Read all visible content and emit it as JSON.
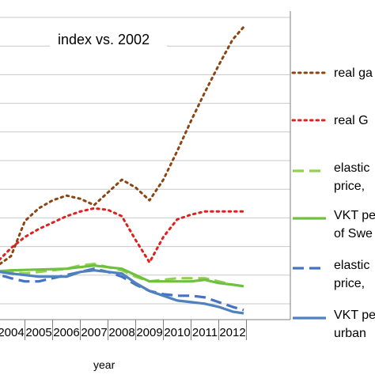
{
  "chart_data": {
    "type": "line",
    "title": "index vs. 2002",
    "xlabel": "year",
    "ylabel": "",
    "x": [
      "2004",
      "2005",
      "2006",
      "2007",
      "2008",
      "2009",
      "2010",
      "2011",
      "2012"
    ],
    "grid": true,
    "legend_placement": "right",
    "series": [
      {
        "name": "real ga",
        "color": "#8B4513",
        "style": "dotted",
        "points": [
          [
            2003.1,
            128
          ],
          [
            2003.6,
            135
          ],
          [
            2004.0,
            140
          ],
          [
            2004.5,
            162
          ],
          [
            2005.0,
            170
          ],
          [
            2005.5,
            175
          ],
          [
            2006.0,
            178
          ],
          [
            2006.5,
            176
          ],
          [
            2007.0,
            172
          ],
          [
            2007.5,
            180
          ],
          [
            2008.0,
            188
          ],
          [
            2008.5,
            183
          ],
          [
            2009.0,
            175
          ],
          [
            2009.5,
            188
          ],
          [
            2010.0,
            206
          ],
          [
            2010.5,
            225
          ],
          [
            2011.0,
            243
          ],
          [
            2011.5,
            260
          ],
          [
            2012.0,
            276
          ],
          [
            2012.4,
            284
          ]
        ]
      },
      {
        "name": "real G",
        "color": "#E02020",
        "style": "dotted",
        "points": [
          [
            2003.1,
            130
          ],
          [
            2003.6,
            138
          ],
          [
            2004.0,
            145
          ],
          [
            2004.5,
            152
          ],
          [
            2005.0,
            157
          ],
          [
            2005.5,
            161
          ],
          [
            2006.0,
            165
          ],
          [
            2006.5,
            168
          ],
          [
            2007.0,
            170
          ],
          [
            2007.5,
            169
          ],
          [
            2008.0,
            165
          ],
          [
            2008.5,
            150
          ],
          [
            2009.0,
            136
          ],
          [
            2009.5,
            152
          ],
          [
            2010.0,
            163
          ],
          [
            2010.5,
            166
          ],
          [
            2011.0,
            168
          ],
          [
            2011.5,
            168
          ],
          [
            2012.0,
            168
          ],
          [
            2012.4,
            168
          ]
        ]
      },
      {
        "name": "elastic price,",
        "color": "#92D050",
        "style": "dashed",
        "points": [
          [
            2003.1,
            129
          ],
          [
            2003.6,
            130
          ],
          [
            2004.0,
            130
          ],
          [
            2004.5,
            129
          ],
          [
            2005.0,
            130
          ],
          [
            2005.5,
            131
          ],
          [
            2006.0,
            132
          ],
          [
            2006.5,
            134
          ],
          [
            2007.0,
            135
          ],
          [
            2007.5,
            133
          ],
          [
            2008.0,
            131
          ],
          [
            2008.5,
            127
          ],
          [
            2009.0,
            124
          ],
          [
            2009.5,
            125
          ],
          [
            2010.0,
            126
          ],
          [
            2010.5,
            126
          ],
          [
            2011.0,
            126
          ],
          [
            2011.5,
            124
          ],
          [
            2012.0,
            122
          ],
          [
            2012.4,
            121
          ]
        ]
      },
      {
        "name": "VKT pe of Swe",
        "color": "#70C040",
        "style": "solid",
        "points": [
          [
            2003.1,
            130
          ],
          [
            2004.0,
            131
          ],
          [
            2005.0,
            131.5
          ],
          [
            2006.0,
            132
          ],
          [
            2007.0,
            134
          ],
          [
            2007.5,
            133
          ],
          [
            2008.0,
            132
          ],
          [
            2008.5,
            128
          ],
          [
            2009.0,
            124
          ],
          [
            2009.5,
            124
          ],
          [
            2010.0,
            124
          ],
          [
            2010.5,
            124
          ],
          [
            2011.0,
            125
          ],
          [
            2011.5,
            123
          ],
          [
            2012.0,
            122
          ],
          [
            2012.4,
            121
          ]
        ]
      },
      {
        "name": "elastic price,",
        "color": "#4472C4",
        "style": "dashed",
        "points": [
          [
            2003.1,
            129
          ],
          [
            2003.6,
            128
          ],
          [
            2004.0,
            126
          ],
          [
            2004.5,
            124
          ],
          [
            2005.0,
            124
          ],
          [
            2005.5,
            126
          ],
          [
            2006.0,
            128
          ],
          [
            2006.5,
            130
          ],
          [
            2007.0,
            132
          ],
          [
            2007.5,
            130
          ],
          [
            2008.0,
            127
          ],
          [
            2008.5,
            122
          ],
          [
            2009.0,
            118
          ],
          [
            2009.5,
            116
          ],
          [
            2010.0,
            115
          ],
          [
            2010.5,
            115
          ],
          [
            2011.0,
            114
          ],
          [
            2011.5,
            111
          ],
          [
            2012.0,
            108
          ],
          [
            2012.4,
            106
          ]
        ]
      },
      {
        "name": "VKT pe urban",
        "color": "#4F81BD",
        "style": "solid",
        "points": [
          [
            2003.1,
            129
          ],
          [
            2003.6,
            130
          ],
          [
            2004.0,
            129
          ],
          [
            2004.5,
            128
          ],
          [
            2005.0,
            127
          ],
          [
            2005.5,
            127
          ],
          [
            2006.0,
            127
          ],
          [
            2006.5,
            130
          ],
          [
            2007.0,
            131
          ],
          [
            2007.5,
            130
          ],
          [
            2008.0,
            129
          ],
          [
            2008.5,
            123
          ],
          [
            2009.0,
            118
          ],
          [
            2009.5,
            115
          ],
          [
            2010.0,
            112
          ],
          [
            2010.5,
            111
          ],
          [
            2011.0,
            110
          ],
          [
            2011.5,
            108
          ],
          [
            2012.0,
            105
          ],
          [
            2012.4,
            104
          ]
        ]
      }
    ]
  },
  "legend": [
    {
      "line1": "real ga",
      "line2": ""
    },
    {
      "line1": "real G",
      "line2": ""
    },
    {
      "line1": "elastic",
      "line2": "price,"
    },
    {
      "line1": "VKT pe",
      "line2": "of Swe"
    },
    {
      "line1": "elastic",
      "line2": "price,"
    },
    {
      "line1": "VKT pe",
      "line2": "urban"
    }
  ]
}
